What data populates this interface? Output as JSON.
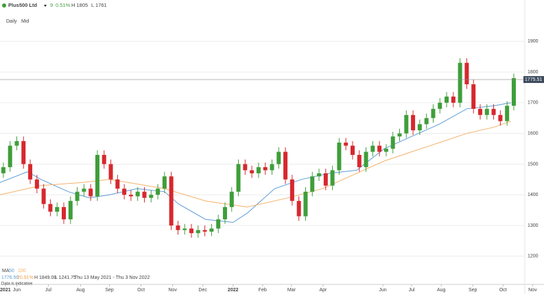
{
  "header": {
    "instrument": "Plus500 Ltd",
    "change": "9",
    "change_pct": "0.51%",
    "high": "H 1805",
    "low": "L 1761",
    "interval": "Daily",
    "price_type": "Mid"
  },
  "footer": {
    "stats": [
      "1776.50",
      "20.91%",
      "H 1849.00",
      "L 1241.75",
      "Thu 13 May 2021 - Thu 3 Nov 2022"
    ],
    "note": "Data is indicative"
  },
  "chart_data": {
    "type": "candlestick",
    "up_color": "#3f9e3a",
    "down_color": "#d6282e",
    "xlim": [
      0,
      81
    ],
    "ylim": [
      1108,
      1990
    ],
    "yticks": [
      1200,
      1300,
      1400,
      1500,
      1600,
      1700,
      1800,
      1900
    ],
    "grid": true,
    "xticks": [
      {
        "value": 0.8,
        "label": "2021"
      },
      {
        "value": 2.5,
        "label": "Jun"
      },
      {
        "value": 7.2,
        "label": "Jul"
      },
      {
        "value": 12,
        "label": "Aug"
      },
      {
        "value": 16.3,
        "label": "Sep"
      },
      {
        "value": 21,
        "label": "Oct"
      },
      {
        "value": 25.7,
        "label": "Nov"
      },
      {
        "value": 30.2,
        "label": "Dec"
      },
      {
        "value": 34.7,
        "label": "2022"
      },
      {
        "value": 39.1,
        "label": "Feb"
      },
      {
        "value": 43.4,
        "label": "Mar"
      },
      {
        "value": 48.1,
        "label": "Apr"
      },
      {
        "value": 57,
        "label": "Jun"
      },
      {
        "value": 61.3,
        "label": "Jul"
      },
      {
        "value": 65.7,
        "label": "Aug"
      },
      {
        "value": 70.4,
        "label": "Sep"
      },
      {
        "value": 74.9,
        "label": "Oct"
      },
      {
        "value": 79.3,
        "label": "Nov"
      }
    ],
    "last_price": 1775.51,
    "last_price_color": "#3c4a5c",
    "candles": {
      "x": [
        0.5,
        1.5,
        2.5,
        3.5,
        4.5,
        5.5,
        6.5,
        7.5,
        8.5,
        9.5,
        10.5,
        11.5,
        12.5,
        13.5,
        14.5,
        15.5,
        16.5,
        17.5,
        18.5,
        19.5,
        20.5,
        21.5,
        22.5,
        23.5,
        24.5,
        25.5,
        26.5,
        27.5,
        28.5,
        29.5,
        30.5,
        31.5,
        32.5,
        33.5,
        34.5,
        35.5,
        36.5,
        37.5,
        38.5,
        39.5,
        40.5,
        41.5,
        42.5,
        43.5,
        44.5,
        45.5,
        46.5,
        47.5,
        48.5,
        49.5,
        50.5,
        51.5,
        52.5,
        53.5,
        54.5,
        55.5,
        56.5,
        57.5,
        58.5,
        59.5,
        60.5,
        61.5,
        62.5,
        63.5,
        64.5,
        65.5,
        66.5,
        67.5,
        68.5,
        69.5,
        70.5,
        71.5,
        72.5,
        73.5,
        74.5,
        75.5,
        76.5
      ],
      "open": [
        1470,
        1490,
        1560,
        1575,
        1500,
        1450,
        1420,
        1370,
        1345,
        1360,
        1320,
        1380,
        1410,
        1420,
        1395,
        1530,
        1500,
        1450,
        1420,
        1400,
        1395,
        1410,
        1390,
        1400,
        1420,
        1460,
        1300,
        1285,
        1290,
        1275,
        1285,
        1280,
        1290,
        1320,
        1360,
        1410,
        1500,
        1480,
        1470,
        1490,
        1480,
        1500,
        1540,
        1450,
        1380,
        1330,
        1410,
        1460,
        1470,
        1430,
        1480,
        1570,
        1560,
        1530,
        1490,
        1540,
        1560,
        1540,
        1550,
        1590,
        1600,
        1660,
        1610,
        1630,
        1650,
        1680,
        1700,
        1720,
        1700,
        1830,
        1760,
        1680,
        1660,
        1680,
        1660,
        1640,
        1690
      ],
      "high": [
        1505,
        1575,
        1590,
        1590,
        1515,
        1465,
        1435,
        1385,
        1375,
        1375,
        1395,
        1425,
        1435,
        1435,
        1545,
        1545,
        1515,
        1465,
        1435,
        1415,
        1425,
        1425,
        1415,
        1435,
        1475,
        1475,
        1315,
        1305,
        1305,
        1300,
        1300,
        1305,
        1335,
        1375,
        1425,
        1515,
        1515,
        1495,
        1505,
        1505,
        1515,
        1555,
        1555,
        1465,
        1395,
        1425,
        1475,
        1485,
        1485,
        1495,
        1585,
        1585,
        1575,
        1545,
        1555,
        1575,
        1575,
        1565,
        1605,
        1615,
        1675,
        1675,
        1645,
        1665,
        1695,
        1715,
        1735,
        1735,
        1845,
        1845,
        1775,
        1695,
        1695,
        1695,
        1675,
        1705,
        1795
      ],
      "low": [
        1455,
        1475,
        1545,
        1485,
        1435,
        1405,
        1355,
        1330,
        1330,
        1305,
        1305,
        1365,
        1395,
        1380,
        1380,
        1485,
        1435,
        1405,
        1385,
        1380,
        1380,
        1375,
        1375,
        1385,
        1405,
        1285,
        1270,
        1270,
        1260,
        1260,
        1265,
        1265,
        1275,
        1305,
        1345,
        1395,
        1465,
        1455,
        1455,
        1465,
        1465,
        1485,
        1435,
        1365,
        1315,
        1315,
        1395,
        1445,
        1415,
        1415,
        1465,
        1545,
        1515,
        1475,
        1475,
        1525,
        1525,
        1525,
        1535,
        1575,
        1585,
        1595,
        1595,
        1615,
        1635,
        1665,
        1685,
        1685,
        1685,
        1745,
        1665,
        1645,
        1645,
        1645,
        1625,
        1625,
        1675
      ],
      "close": [
        1490,
        1560,
        1575,
        1500,
        1450,
        1420,
        1370,
        1345,
        1360,
        1320,
        1380,
        1410,
        1420,
        1395,
        1530,
        1500,
        1450,
        1420,
        1400,
        1395,
        1410,
        1390,
        1400,
        1420,
        1460,
        1300,
        1285,
        1290,
        1275,
        1285,
        1280,
        1290,
        1320,
        1360,
        1410,
        1500,
        1480,
        1470,
        1490,
        1480,
        1500,
        1540,
        1450,
        1380,
        1330,
        1410,
        1460,
        1470,
        1430,
        1480,
        1570,
        1560,
        1530,
        1490,
        1540,
        1560,
        1540,
        1550,
        1590,
        1600,
        1660,
        1610,
        1630,
        1650,
        1680,
        1700,
        1720,
        1700,
        1830,
        1760,
        1680,
        1660,
        1680,
        1660,
        1640,
        1690,
        1780
      ]
    },
    "ma_label": "MA",
    "series": [
      {
        "name": "50",
        "color": "#5b9bd5",
        "x": [
          0,
          4.1,
          6.1,
          10.2,
          13.3,
          16.3,
          20.4,
          24.5,
          26.6,
          30.6,
          34.7,
          36.8,
          40.9,
          44.9,
          49,
          53.1,
          57.2,
          61.3,
          65.4,
          69.5,
          73.5,
          76.1
        ],
        "values": [
          1440,
          1475,
          1450,
          1410,
          1390,
          1400,
          1420,
          1410,
          1370,
          1320,
          1310,
          1340,
          1420,
          1450,
          1470,
          1480,
          1550,
          1590,
          1630,
          1680,
          1690,
          1700
        ]
      },
      {
        "name": "100",
        "color": "#f5b169",
        "x": [
          0,
          6.1,
          12.3,
          16.3,
          24.5,
          30.6,
          36.8,
          42.9,
          48,
          53.1,
          57.2,
          61.3,
          65.4,
          69.5,
          73.5,
          76.1
        ],
        "values": [
          1400,
          1430,
          1440,
          1450,
          1420,
          1380,
          1360,
          1390,
          1420,
          1470,
          1510,
          1540,
          1570,
          1600,
          1620,
          1640
        ]
      }
    ]
  }
}
